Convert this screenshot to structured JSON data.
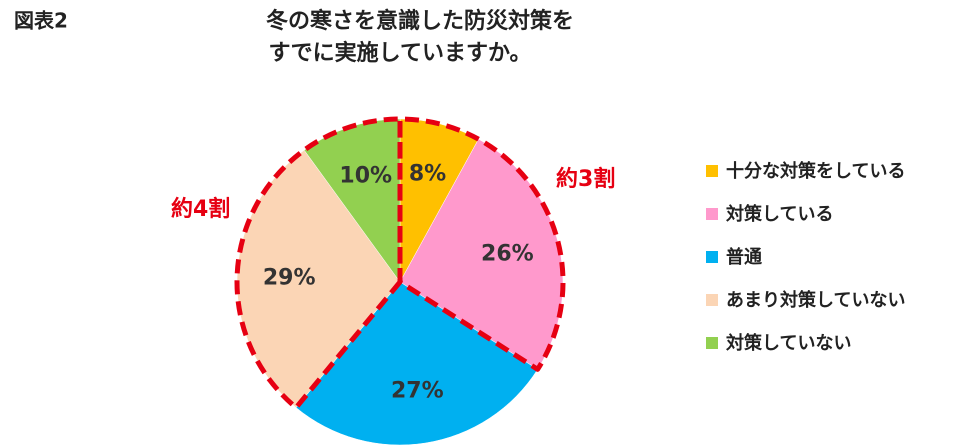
{
  "chart_data": {
    "type": "pie",
    "figure_label": "図表2",
    "title": "冬の寒さを意識した防災対策を",
    "subtitle": "すでに実施していますか。",
    "categories": [
      "十分な対策をしている",
      "対策している",
      "普通",
      "あまり対策していない",
      "対策していない"
    ],
    "values": [
      8,
      26,
      27,
      29,
      10
    ],
    "value_labels": [
      "8%",
      "26%",
      "27%",
      "29%",
      "10%"
    ],
    "colors": [
      "#ffc000",
      "#ff99cc",
      "#00b0f0",
      "#fbd5b5",
      "#92d050"
    ],
    "legend": "right",
    "annotations": [
      {
        "text": "約3割",
        "segments": [
          0,
          1
        ],
        "color": "#e60012"
      },
      {
        "text": "約4割",
        "segments": [
          3,
          4
        ],
        "color": "#e60012"
      }
    ]
  }
}
